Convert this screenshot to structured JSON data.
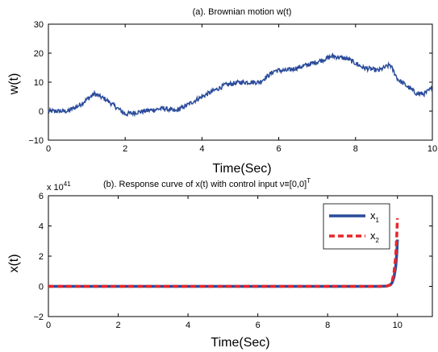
{
  "chart_data": [
    {
      "type": "line",
      "title": "(a). Brownian motion w(t)",
      "xlabel": "Time(Sec)",
      "ylabel": "w(t)",
      "xlim": [
        0,
        10
      ],
      "ylim": [
        -10,
        30
      ],
      "xticks": [
        "0",
        "2",
        "4",
        "6",
        "8",
        "10"
      ],
      "yticks": [
        "−10",
        "0",
        "10",
        "20",
        "30"
      ],
      "grid": false,
      "series": [
        {
          "color": "#2a4b9b",
          "x": [
            0,
            0.5,
            0.8,
            1.2,
            1.5,
            1.8,
            2.0,
            2.5,
            3.0,
            3.3,
            3.6,
            4.0,
            4.3,
            4.6,
            5.0,
            5.5,
            5.9,
            6.2,
            6.5,
            7.0,
            7.4,
            7.8,
            8.2,
            8.6,
            8.9,
            9.1,
            9.3,
            9.6,
            9.8,
            10.0
          ],
          "y": [
            0,
            0,
            2,
            6,
            4,
            1,
            -1,
            0,
            1,
            0,
            2,
            5,
            7,
            9,
            10,
            10,
            14,
            14,
            15,
            17,
            19,
            18,
            15,
            14,
            16,
            11,
            9,
            6,
            6,
            8
          ]
        }
      ]
    },
    {
      "type": "line",
      "title_main": "(b). Response curve of x(t) with control input ",
      "title_symbol": "ν≡[0,0]",
      "title_sup": "T",
      "xlabel": "Time(Sec)",
      "ylabel": "x(t)",
      "scale_base": "x 10",
      "scale_exp": "41",
      "xlim": [
        0,
        11
      ],
      "ylim": [
        -2,
        6
      ],
      "xticks": [
        "0",
        "2",
        "4",
        "6",
        "8",
        "10"
      ],
      "yticks": [
        "−2",
        "0",
        "2",
        "4",
        "6"
      ],
      "legend_position": "top-right",
      "grid": false,
      "series": [
        {
          "name": "x",
          "name_sub": "1",
          "color": "#2a4b9b",
          "style": "solid",
          "x": [
            0,
            9.5,
            9.7,
            9.8,
            9.85,
            9.9,
            9.95,
            9.98,
            10.0
          ],
          "y": [
            0,
            0,
            0.02,
            0.1,
            0.25,
            0.6,
            1.3,
            2.2,
            3.1
          ]
        },
        {
          "name": "x",
          "name_sub": "2",
          "color": "#e8262a",
          "style": "dashed",
          "x": [
            0,
            9.5,
            9.7,
            9.8,
            9.85,
            9.9,
            9.95,
            9.98,
            10.0
          ],
          "y": [
            0,
            0,
            0.02,
            0.12,
            0.35,
            0.9,
            2.0,
            3.4,
            4.5
          ]
        }
      ]
    }
  ]
}
